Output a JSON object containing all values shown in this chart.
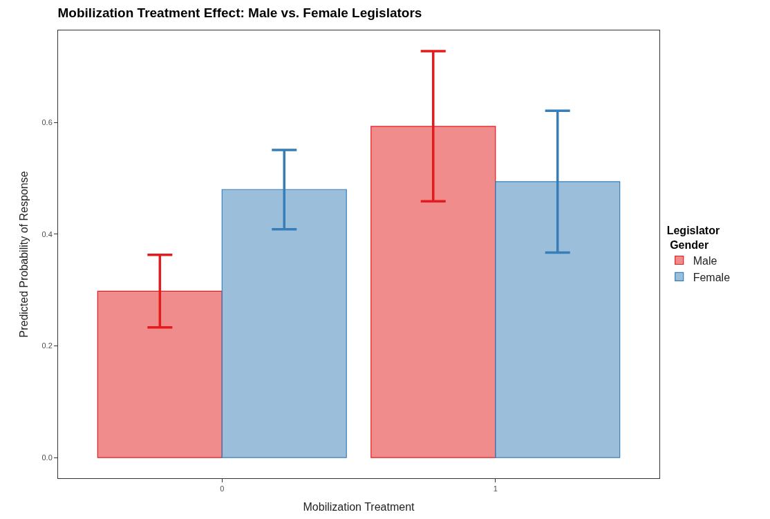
{
  "chart_data": {
    "type": "bar",
    "title": "Mobilization Treatment Effect: Male vs. Female Legislators",
    "xlabel": "Mobilization Treatment",
    "ylabel": "Predicted Probability of Response",
    "legend_title": "Legislator\n Gender",
    "categories": [
      "0",
      "1"
    ],
    "series": [
      {
        "name": "Male",
        "color": "#e41a1c",
        "values": [
          0.298,
          0.593
        ],
        "errors": [
          [
            0.233,
            0.363
          ],
          [
            0.459,
            0.728
          ]
        ]
      },
      {
        "name": "Female",
        "color": "#377eb8",
        "values": [
          0.48,
          0.494
        ],
        "errors": [
          [
            0.409,
            0.551
          ],
          [
            0.367,
            0.621
          ]
        ]
      }
    ],
    "ylim": [
      -0.037,
      0.765
    ],
    "yticks": [
      {
        "value": 0,
        "label": "0.0"
      },
      {
        "value": 0.2,
        "label": "0.2"
      },
      {
        "value": 0.4,
        "label": "0.4"
      },
      {
        "value": 0.6,
        "label": "0.6"
      }
    ],
    "legend": "right"
  }
}
